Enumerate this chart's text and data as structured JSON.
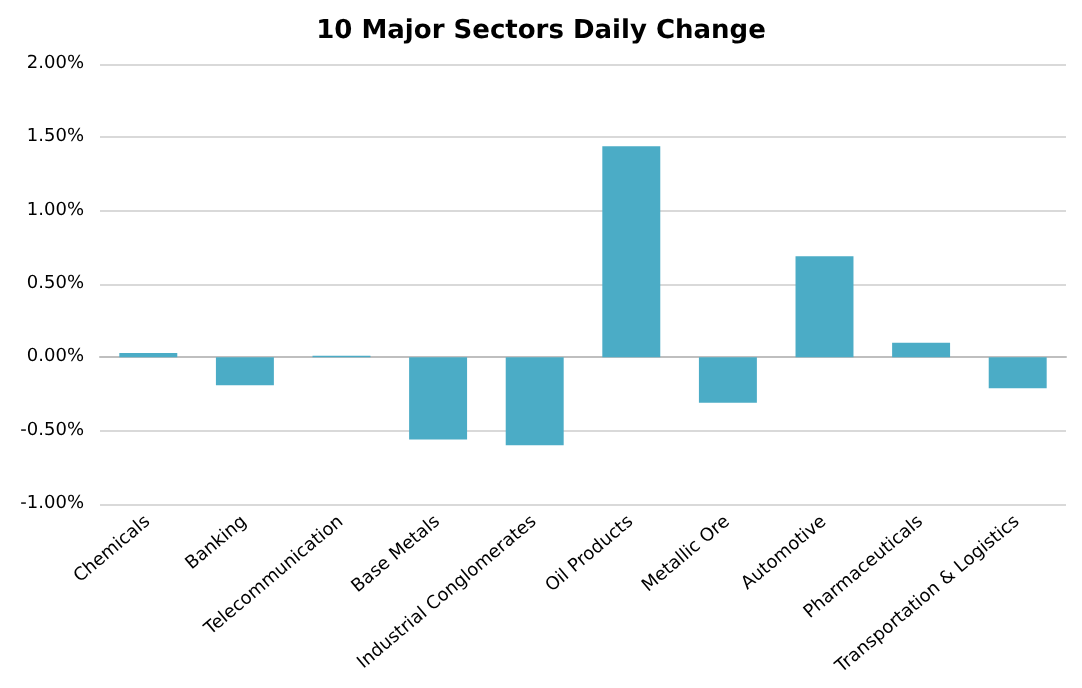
{
  "chart_data": {
    "type": "bar",
    "title": "10 Major Sectors Daily Change",
    "categories": [
      "Chemicals",
      "Banking",
      "Telecommunication",
      "Base Metals",
      "Industrial Conglomerates",
      "Oil Products",
      "Metallic Ore",
      "Automotive",
      "Pharmaceuticals",
      "Transportation & Logistics"
    ],
    "values": [
      0.03,
      -0.19,
      0.01,
      -0.56,
      -0.6,
      1.44,
      -0.31,
      0.69,
      0.1,
      -0.21
    ],
    "color": "#4bacc6",
    "ylim": [
      -1,
      2
    ],
    "yticks": [
      {
        "value": -1,
        "label": "-1.00%"
      },
      {
        "value": -0.5,
        "label": "-0.50%"
      },
      {
        "value": 0,
        "label": "0.00%"
      },
      {
        "value": 0.5,
        "label": "0.50%"
      },
      {
        "value": 1,
        "label": "1.00%"
      },
      {
        "value": 1.5,
        "label": "1.50%"
      },
      {
        "value": 2,
        "label": "2.00%"
      }
    ],
    "grid": "y"
  }
}
